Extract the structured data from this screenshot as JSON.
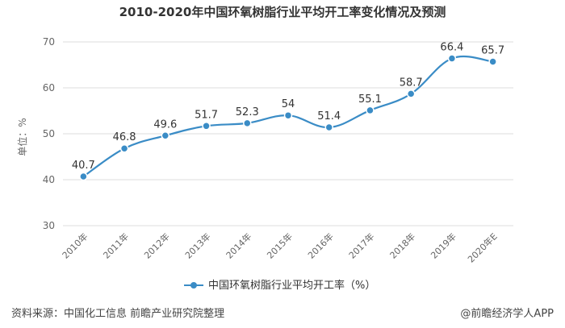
{
  "title": "2010-2020年中国环氧树脂行业平均开工率变化情况及预测",
  "footer": {
    "source": "资料来源：中国化工信息 前瞻产业研究院整理",
    "brand": "@前瞻经济学人APP"
  },
  "colors": {
    "line": "#3a8cc6",
    "grid": "#dddddd"
  },
  "chart_data": {
    "type": "line",
    "categories": [
      "2010年",
      "2011年",
      "2012年",
      "2013年",
      "2014年",
      "2015年",
      "2016年",
      "2017年",
      "2018年",
      "2019年",
      "2020年E"
    ],
    "series": [
      {
        "name": "中国环氧树脂行业平均开工率（%）",
        "values": [
          40.7,
          46.8,
          49.6,
          51.7,
          52.3,
          54,
          51.4,
          55.1,
          58.7,
          66.4,
          65.7
        ]
      }
    ],
    "ylabel": "单位：%",
    "ylim": [
      30,
      70
    ],
    "yticks": [
      30,
      40,
      50,
      60,
      70
    ],
    "grid": true,
    "legend_position": "bottom"
  }
}
